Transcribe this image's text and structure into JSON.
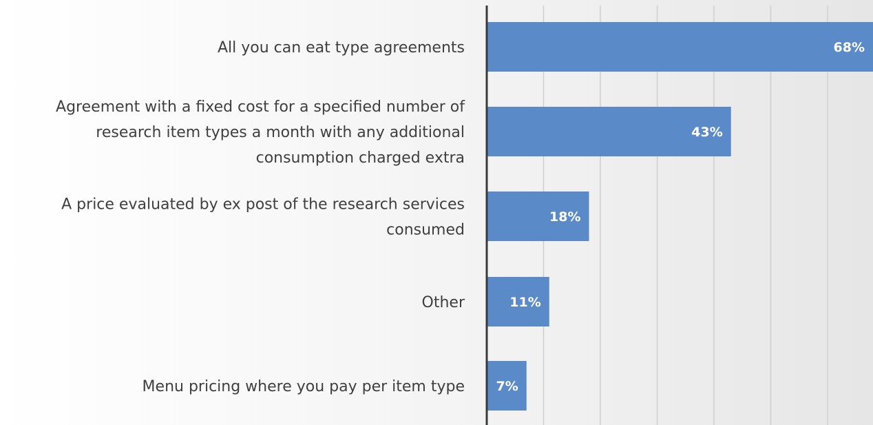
{
  "chart_data": {
    "type": "bar",
    "orientation": "horizontal",
    "categories": [
      "All you can eat type agreements",
      "Agreement with a fixed cost for a specified number of research item types a month with any additional consumption charged extra",
      "A price evaluated by ex post of the research services consumed",
      "Other",
      "Menu pricing where you pay per item type"
    ],
    "category_lines": [
      [
        "All you can eat type agreements"
      ],
      [
        "Agreement with a fixed cost for a specified number of",
        "research item types a month with any additional",
        "consumption charged extra"
      ],
      [
        "A price evaluated by ex post of the research services",
        "consumed"
      ],
      [
        "Other"
      ],
      [
        "Menu pricing where you pay per item type"
      ]
    ],
    "values": [
      68,
      43,
      18,
      11,
      7
    ],
    "data_labels": [
      "68%",
      "43%",
      "18%",
      "11%",
      "7%"
    ],
    "value_unit": "%",
    "xlim": [
      0,
      68
    ],
    "grid": true,
    "legend": "none",
    "bar_color": "#5b8ac9"
  }
}
